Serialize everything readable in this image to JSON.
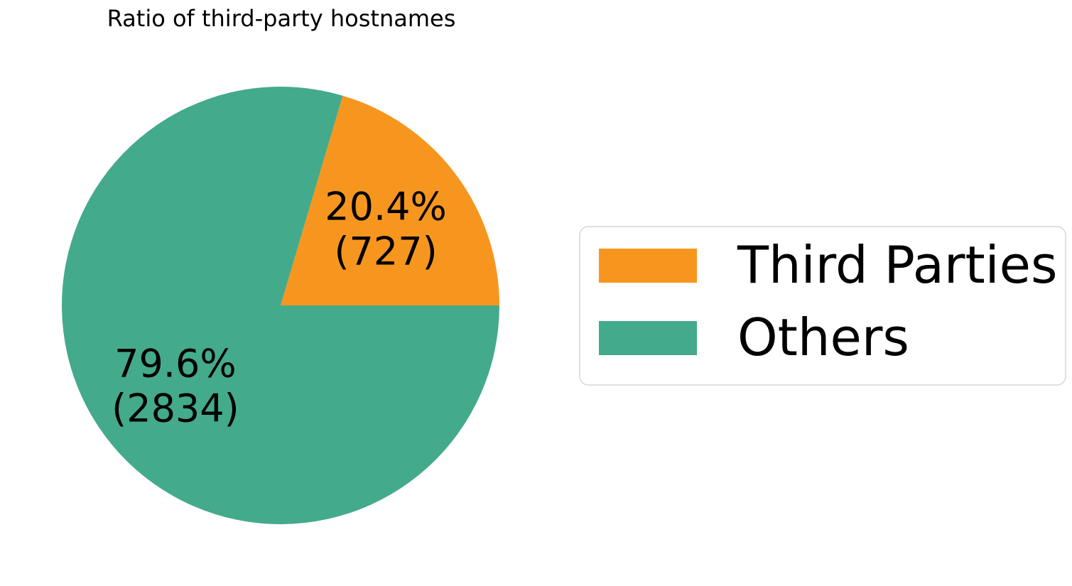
{
  "chart_data": {
    "type": "pie",
    "title": "Ratio of third-party hostnames",
    "slices": [
      {
        "label": "Third Parties",
        "value": 727,
        "percent_label": "20.4%",
        "count_label": "(727)",
        "color": "#F7961E"
      },
      {
        "label": "Others",
        "value": 2834,
        "percent_label": "79.6%",
        "count_label": "(2834)",
        "color": "#44AA8C"
      }
    ],
    "legend": {
      "placement": "right",
      "entries": [
        "Third Parties",
        "Others"
      ]
    }
  }
}
